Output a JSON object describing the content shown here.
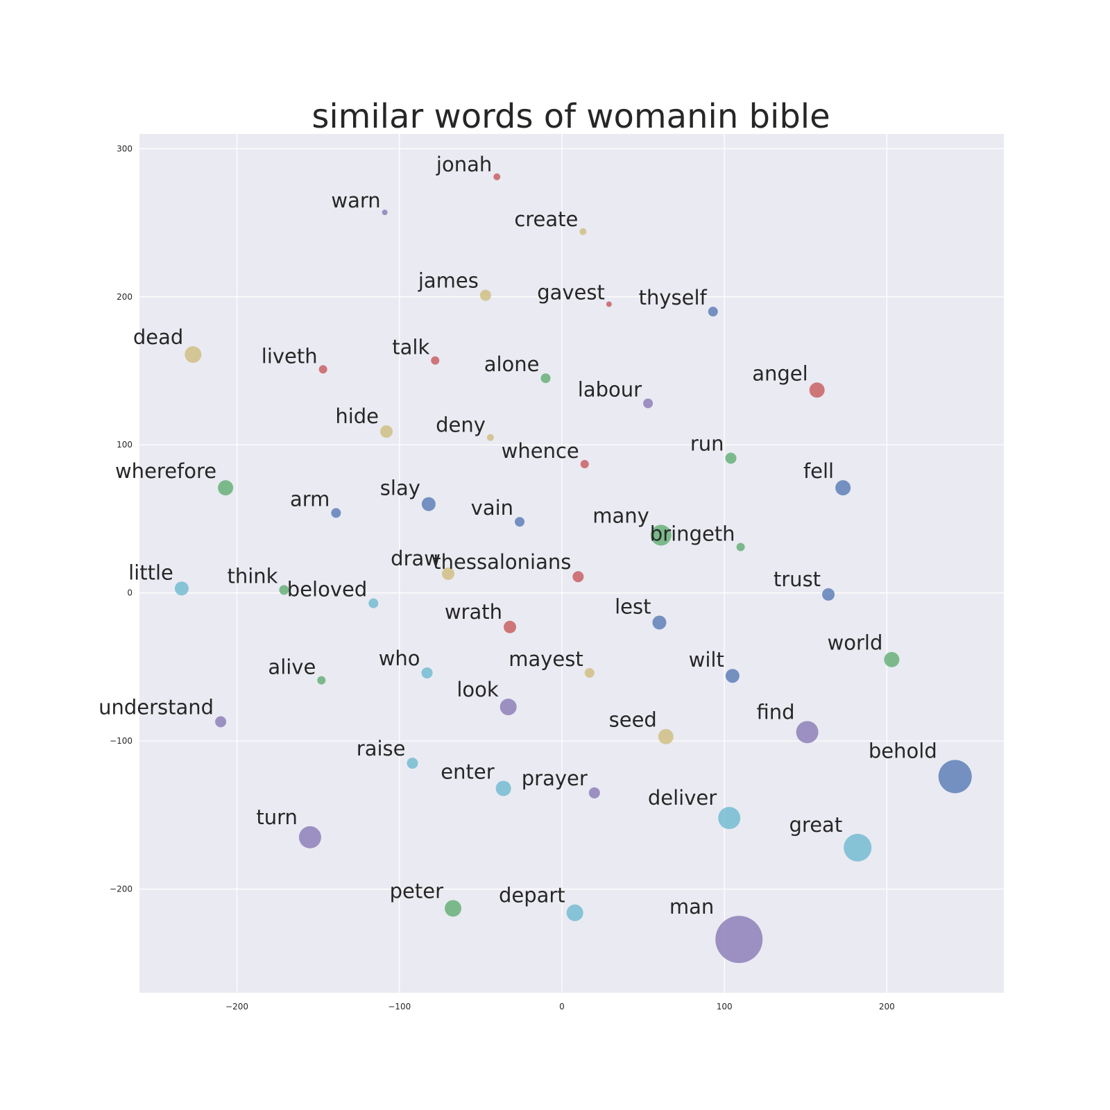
{
  "chart_data": {
    "type": "scatter",
    "title": "similar words of womanin bible",
    "xlabel": "",
    "ylabel": "",
    "xlim": [
      -260,
      272
    ],
    "ylim": [
      -270,
      310
    ],
    "xticks": [
      -200,
      -100,
      0,
      100,
      200
    ],
    "yticks": [
      -200,
      -100,
      0,
      100,
      200,
      300
    ],
    "grid": true,
    "palette": {
      "blue": "#4c72b0",
      "green": "#55a868",
      "red": "#c44e52",
      "purple": "#8172b2",
      "yellow": "#ccb974",
      "cyan": "#64b5cd"
    },
    "points": [
      {
        "word": "jonah",
        "x": -40,
        "y": 281,
        "size": 5,
        "color": "red"
      },
      {
        "word": "warn",
        "x": -109,
        "y": 257,
        "size": 4,
        "color": "purple"
      },
      {
        "word": "create",
        "x": 13,
        "y": 244,
        "size": 5,
        "color": "yellow"
      },
      {
        "word": "james",
        "x": -47,
        "y": 201,
        "size": 8,
        "color": "yellow"
      },
      {
        "word": "gavest",
        "x": 29,
        "y": 195,
        "size": 4,
        "color": "red"
      },
      {
        "word": "thyself",
        "x": 93,
        "y": 190,
        "size": 7,
        "color": "blue"
      },
      {
        "word": "dead",
        "x": -227,
        "y": 161,
        "size": 12,
        "color": "yellow"
      },
      {
        "word": "liveth",
        "x": -147,
        "y": 151,
        "size": 6,
        "color": "red"
      },
      {
        "word": "talk",
        "x": -78,
        "y": 157,
        "size": 6,
        "color": "red"
      },
      {
        "word": "alone",
        "x": -10,
        "y": 145,
        "size": 7,
        "color": "green"
      },
      {
        "word": "angel",
        "x": 157,
        "y": 137,
        "size": 11,
        "color": "red"
      },
      {
        "word": "labour",
        "x": 53,
        "y": 128,
        "size": 7,
        "color": "purple"
      },
      {
        "word": "hide",
        "x": -108,
        "y": 109,
        "size": 9,
        "color": "yellow"
      },
      {
        "word": "deny",
        "x": -44,
        "y": 105,
        "size": 5,
        "color": "yellow"
      },
      {
        "word": "whence",
        "x": 14,
        "y": 87,
        "size": 6,
        "color": "red"
      },
      {
        "word": "run",
        "x": 104,
        "y": 91,
        "size": 8,
        "color": "green"
      },
      {
        "word": "wherefore",
        "x": -207,
        "y": 71,
        "size": 11,
        "color": "green"
      },
      {
        "word": "fell",
        "x": 173,
        "y": 71,
        "size": 11,
        "color": "blue"
      },
      {
        "word": "arm",
        "x": -139,
        "y": 54,
        "size": 7,
        "color": "blue"
      },
      {
        "word": "slay",
        "x": -82,
        "y": 60,
        "size": 10,
        "color": "blue"
      },
      {
        "word": "vain",
        "x": -26,
        "y": 48,
        "size": 7,
        "color": "blue"
      },
      {
        "word": "many",
        "x": 61,
        "y": 39,
        "size": 15,
        "color": "green"
      },
      {
        "word": "bringeth",
        "x": 110,
        "y": 31,
        "size": 6,
        "color": "green"
      },
      {
        "word": "draw",
        "x": -70,
        "y": 13,
        "size": 9,
        "color": "yellow"
      },
      {
        "word": "thessalonians",
        "x": 10,
        "y": 11,
        "size": 8,
        "color": "red"
      },
      {
        "word": "little",
        "x": -234,
        "y": 3,
        "size": 10,
        "color": "cyan"
      },
      {
        "word": "think",
        "x": -171,
        "y": 2,
        "size": 7,
        "color": "green"
      },
      {
        "word": "beloved",
        "x": -116,
        "y": -7,
        "size": 7,
        "color": "cyan"
      },
      {
        "word": "trust",
        "x": 164,
        "y": -1,
        "size": 9,
        "color": "blue"
      },
      {
        "word": "wrath",
        "x": -32,
        "y": -23,
        "size": 9,
        "color": "red"
      },
      {
        "word": "lest",
        "x": 60,
        "y": -20,
        "size": 10,
        "color": "blue"
      },
      {
        "word": "world",
        "x": 203,
        "y": -45,
        "size": 11,
        "color": "green"
      },
      {
        "word": "alive",
        "x": -148,
        "y": -59,
        "size": 6,
        "color": "green"
      },
      {
        "word": "who",
        "x": -83,
        "y": -54,
        "size": 8,
        "color": "cyan"
      },
      {
        "word": "mayest",
        "x": 17,
        "y": -54,
        "size": 7,
        "color": "yellow"
      },
      {
        "word": "wilt",
        "x": 105,
        "y": -56,
        "size": 10,
        "color": "blue"
      },
      {
        "word": "look",
        "x": -33,
        "y": -77,
        "size": 12,
        "color": "purple"
      },
      {
        "word": "understand",
        "x": -210,
        "y": -87,
        "size": 8,
        "color": "purple"
      },
      {
        "word": "seed",
        "x": 64,
        "y": -97,
        "size": 11,
        "color": "yellow"
      },
      {
        "word": "find",
        "x": 151,
        "y": -94,
        "size": 16,
        "color": "purple"
      },
      {
        "word": "raise",
        "x": -92,
        "y": -115,
        "size": 8,
        "color": "cyan"
      },
      {
        "word": "behold",
        "x": 242,
        "y": -124,
        "size": 24,
        "color": "blue"
      },
      {
        "word": "enter",
        "x": -36,
        "y": -132,
        "size": 11,
        "color": "cyan"
      },
      {
        "word": "prayer",
        "x": 20,
        "y": -135,
        "size": 8,
        "color": "purple"
      },
      {
        "word": "deliver",
        "x": 103,
        "y": -152,
        "size": 16,
        "color": "cyan"
      },
      {
        "word": "turn",
        "x": -155,
        "y": -165,
        "size": 16,
        "color": "purple"
      },
      {
        "word": "great",
        "x": 182,
        "y": -172,
        "size": 20,
        "color": "cyan"
      },
      {
        "word": "peter",
        "x": -67,
        "y": -213,
        "size": 12,
        "color": "green"
      },
      {
        "word": "depart",
        "x": 8,
        "y": -216,
        "size": 12,
        "color": "cyan"
      },
      {
        "word": "man",
        "x": 109,
        "y": -234,
        "size": 34,
        "color": "purple"
      }
    ]
  }
}
